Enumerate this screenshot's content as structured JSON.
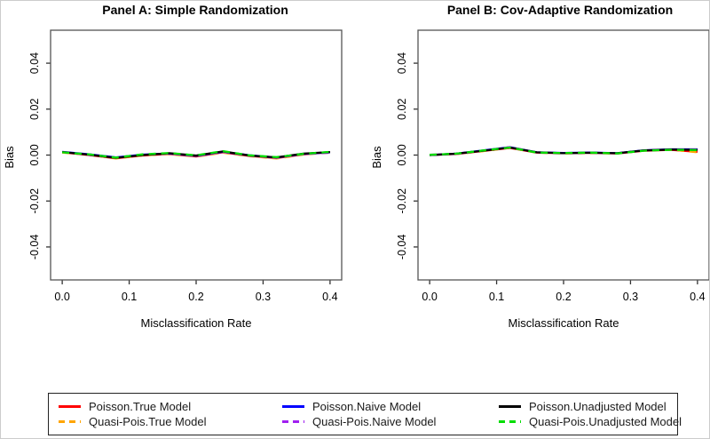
{
  "figure": {
    "background": "#ffffff",
    "panel_a_title": "Panel A: Simple Randomization",
    "panel_b_title": "Panel B: Cov-Adaptive Randomization"
  },
  "chart_data": [
    {
      "type": "line",
      "title": "Panel A: Simple Randomization",
      "xlabel": "Misclassification Rate",
      "ylabel": "Bias",
      "xlim": [
        0,
        0.4
      ],
      "ylim": [
        -0.05,
        0.05
      ],
      "grid": false,
      "legend_position": "bottom-outside",
      "xticks": [
        {
          "value": 0.0,
          "label": "0.0"
        },
        {
          "value": 0.1,
          "label": "0.1"
        },
        {
          "value": 0.2,
          "label": "0.2"
        },
        {
          "value": 0.3,
          "label": "0.3"
        },
        {
          "value": 0.4,
          "label": "0.4"
        }
      ],
      "yticks": [
        {
          "value": -0.04,
          "label": "-0.04"
        },
        {
          "value": -0.02,
          "label": "-0.02"
        },
        {
          "value": 0.0,
          "label": "0.00"
        },
        {
          "value": 0.02,
          "label": "0.02"
        },
        {
          "value": 0.04,
          "label": "0.04"
        }
      ],
      "x": [
        0.0,
        0.04,
        0.08,
        0.12,
        0.16,
        0.2,
        0.24,
        0.28,
        0.32,
        0.36,
        0.4
      ],
      "series": [
        {
          "name": "Poisson.True Model",
          "color": "#FF0000",
          "linetype": "solid",
          "values": [
            0.0012,
            0.0,
            -0.0014,
            -0.0002,
            0.0005,
            -0.0006,
            0.0012,
            -0.0004,
            -0.0013,
            0.0003,
            0.0013
          ]
        },
        {
          "name": "Quasi-Pois.True Model",
          "color": "#FFA500",
          "linetype": "dashed",
          "values": [
            0.0011,
            0.0002,
            -0.0015,
            -0.0001,
            0.0004,
            -0.0007,
            0.001,
            -0.0005,
            -0.0015,
            0.0002,
            0.0011
          ]
        },
        {
          "name": "Poisson.Naive Model",
          "color": "#0000FF",
          "linetype": "solid",
          "values": [
            0.0014,
            0.0003,
            -0.001,
            0.0002,
            0.0007,
            -0.0003,
            0.0014,
            -0.0001,
            -0.0011,
            0.0005,
            0.0012
          ]
        },
        {
          "name": "Quasi-Pois.Naive Model",
          "color": "#A020F0",
          "linetype": "dashed",
          "values": [
            0.0013,
            0.0001,
            -0.0012,
            0.0001,
            0.0006,
            -0.0005,
            0.0013,
            -0.0003,
            -0.0012,
            0.0004,
            0.001
          ]
        },
        {
          "name": "Poisson.Unadjusted Model",
          "color": "#000000",
          "linetype": "solid",
          "values": [
            0.0013,
            0.0002,
            -0.0012,
            0.0,
            0.0008,
            -0.0002,
            0.0016,
            -0.0002,
            -0.001,
            0.0006,
            0.0013
          ]
        },
        {
          "name": "Quasi-Pois.Unadjusted Model",
          "color": "#00DD00",
          "linetype": "dashed",
          "values": [
            0.0012,
            0.0003,
            -0.0011,
            0.0003,
            0.0009,
            -0.0001,
            0.0017,
            -0.0001,
            -0.0009,
            0.0005,
            0.0014
          ]
        }
      ]
    },
    {
      "type": "line",
      "title": "Panel B: Cov-Adaptive Randomization",
      "xlabel": "Misclassification Rate",
      "ylabel": "Bias",
      "xlim": [
        0,
        0.4
      ],
      "ylim": [
        -0.05,
        0.05
      ],
      "grid": false,
      "legend_position": "bottom-outside",
      "xticks": [
        {
          "value": 0.0,
          "label": "0.0"
        },
        {
          "value": 0.1,
          "label": "0.1"
        },
        {
          "value": 0.2,
          "label": "0.2"
        },
        {
          "value": 0.3,
          "label": "0.3"
        },
        {
          "value": 0.4,
          "label": "0.4"
        }
      ],
      "yticks": [
        {
          "value": -0.04,
          "label": "-0.04"
        },
        {
          "value": -0.02,
          "label": "-0.02"
        },
        {
          "value": 0.0,
          "label": "0.00"
        },
        {
          "value": 0.02,
          "label": "0.02"
        },
        {
          "value": 0.04,
          "label": "0.04"
        }
      ],
      "x": [
        0.0,
        0.04,
        0.08,
        0.12,
        0.16,
        0.2,
        0.24,
        0.28,
        0.32,
        0.36,
        0.4
      ],
      "series": [
        {
          "name": "Poisson.True Model",
          "color": "#FF0000",
          "linetype": "solid",
          "values": [
            0.0,
            0.0005,
            0.0018,
            0.0031,
            0.0011,
            0.0008,
            0.001,
            0.0007,
            0.0019,
            0.0023,
            0.0014
          ]
        },
        {
          "name": "Quasi-Pois.True Model",
          "color": "#FFA500",
          "linetype": "dashed",
          "values": [
            0.0001,
            0.0004,
            0.0017,
            0.0032,
            0.001,
            0.0007,
            0.0009,
            0.0006,
            0.002,
            0.0024,
            0.0012
          ]
        },
        {
          "name": "Poisson.Naive Model",
          "color": "#0000FF",
          "linetype": "solid",
          "values": [
            0.0,
            0.0006,
            0.002,
            0.0034,
            0.0012,
            0.0009,
            0.0011,
            0.0008,
            0.0021,
            0.0025,
            0.0025
          ]
        },
        {
          "name": "Quasi-Pois.Naive Model",
          "color": "#A020F0",
          "linetype": "dashed",
          "values": [
            0.0001,
            0.0005,
            0.0019,
            0.0035,
            0.0011,
            0.0008,
            0.001,
            0.0007,
            0.002,
            0.0024,
            0.0024
          ]
        },
        {
          "name": "Poisson.Unadjusted Model",
          "color": "#000000",
          "linetype": "solid",
          "values": [
            0.0,
            0.0006,
            0.0019,
            0.0033,
            0.0012,
            0.0008,
            0.001,
            0.0008,
            0.002,
            0.0024,
            0.0023
          ]
        },
        {
          "name": "Quasi-Pois.Unadjusted Model",
          "color": "#00DD00",
          "linetype": "dashed",
          "values": [
            0.0001,
            0.0006,
            0.002,
            0.0033,
            0.0011,
            0.0009,
            0.0011,
            0.0007,
            0.0019,
            0.0023,
            0.0022
          ]
        }
      ]
    }
  ],
  "legend": {
    "columns": 3,
    "items": [
      {
        "label": "Poisson.True Model",
        "color": "#FF0000",
        "linetype": "solid"
      },
      {
        "label": "Quasi-Pois.True Model",
        "color": "#FFA500",
        "linetype": "dashed"
      },
      {
        "label": "Poisson.Naive Model",
        "color": "#0000FF",
        "linetype": "solid"
      },
      {
        "label": "Quasi-Pois.Naive Model",
        "color": "#A020F0",
        "linetype": "dashed"
      },
      {
        "label": "Poisson.Unadjusted Model",
        "color": "#000000",
        "linetype": "solid"
      },
      {
        "label": "Quasi-Pois.Unadjusted Model",
        "color": "#00DD00",
        "linetype": "dashed"
      }
    ]
  }
}
